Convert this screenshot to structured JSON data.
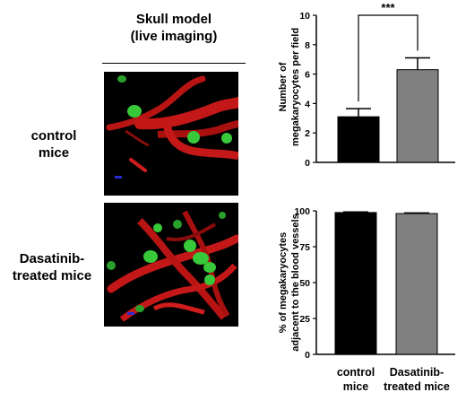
{
  "figure": {
    "panel_title_line1": "Skull model",
    "panel_title_line2": "(live imaging)",
    "rows": [
      {
        "label_line1": "control",
        "label_line2": "mice"
      },
      {
        "label_line1": "Dasatinib-",
        "label_line2": "treated mice"
      }
    ],
    "image_colors": {
      "vessel": "#c41818",
      "megakaryocyte": "#38c93a",
      "background": "#000000"
    }
  },
  "chart_data": [
    {
      "type": "bar",
      "categories": [
        "control mice",
        "Dasatinib-treated mice"
      ],
      "values": [
        3.1,
        6.3
      ],
      "errors": [
        0.55,
        0.8
      ],
      "colors": [
        "#000000",
        "#808080"
      ],
      "ylabel_line1": "Number of",
      "ylabel_line2": "megakaryocytes per field",
      "ylim": [
        0,
        10
      ],
      "yticks": [
        "0",
        "2",
        "4",
        "6",
        "8",
        "10"
      ],
      "significance": "***",
      "show_category_labels": false
    },
    {
      "type": "bar",
      "categories": [
        "control mice",
        "Dasatinib-treated mice"
      ],
      "values": [
        98.8,
        98.1
      ],
      "errors": [
        0.4,
        0.4
      ],
      "colors": [
        "#000000",
        "#808080"
      ],
      "ylabel_line1": "% of megakaryocytes",
      "ylabel_line2": "adjacent to the blood vessels",
      "ylim": [
        0,
        100
      ],
      "yticks": [
        "0",
        "25",
        "50",
        "75",
        "100"
      ],
      "category_label_lines": [
        [
          "control",
          "mice"
        ],
        [
          "Dasatinib-",
          "treated mice"
        ]
      ],
      "show_category_labels": true
    }
  ]
}
